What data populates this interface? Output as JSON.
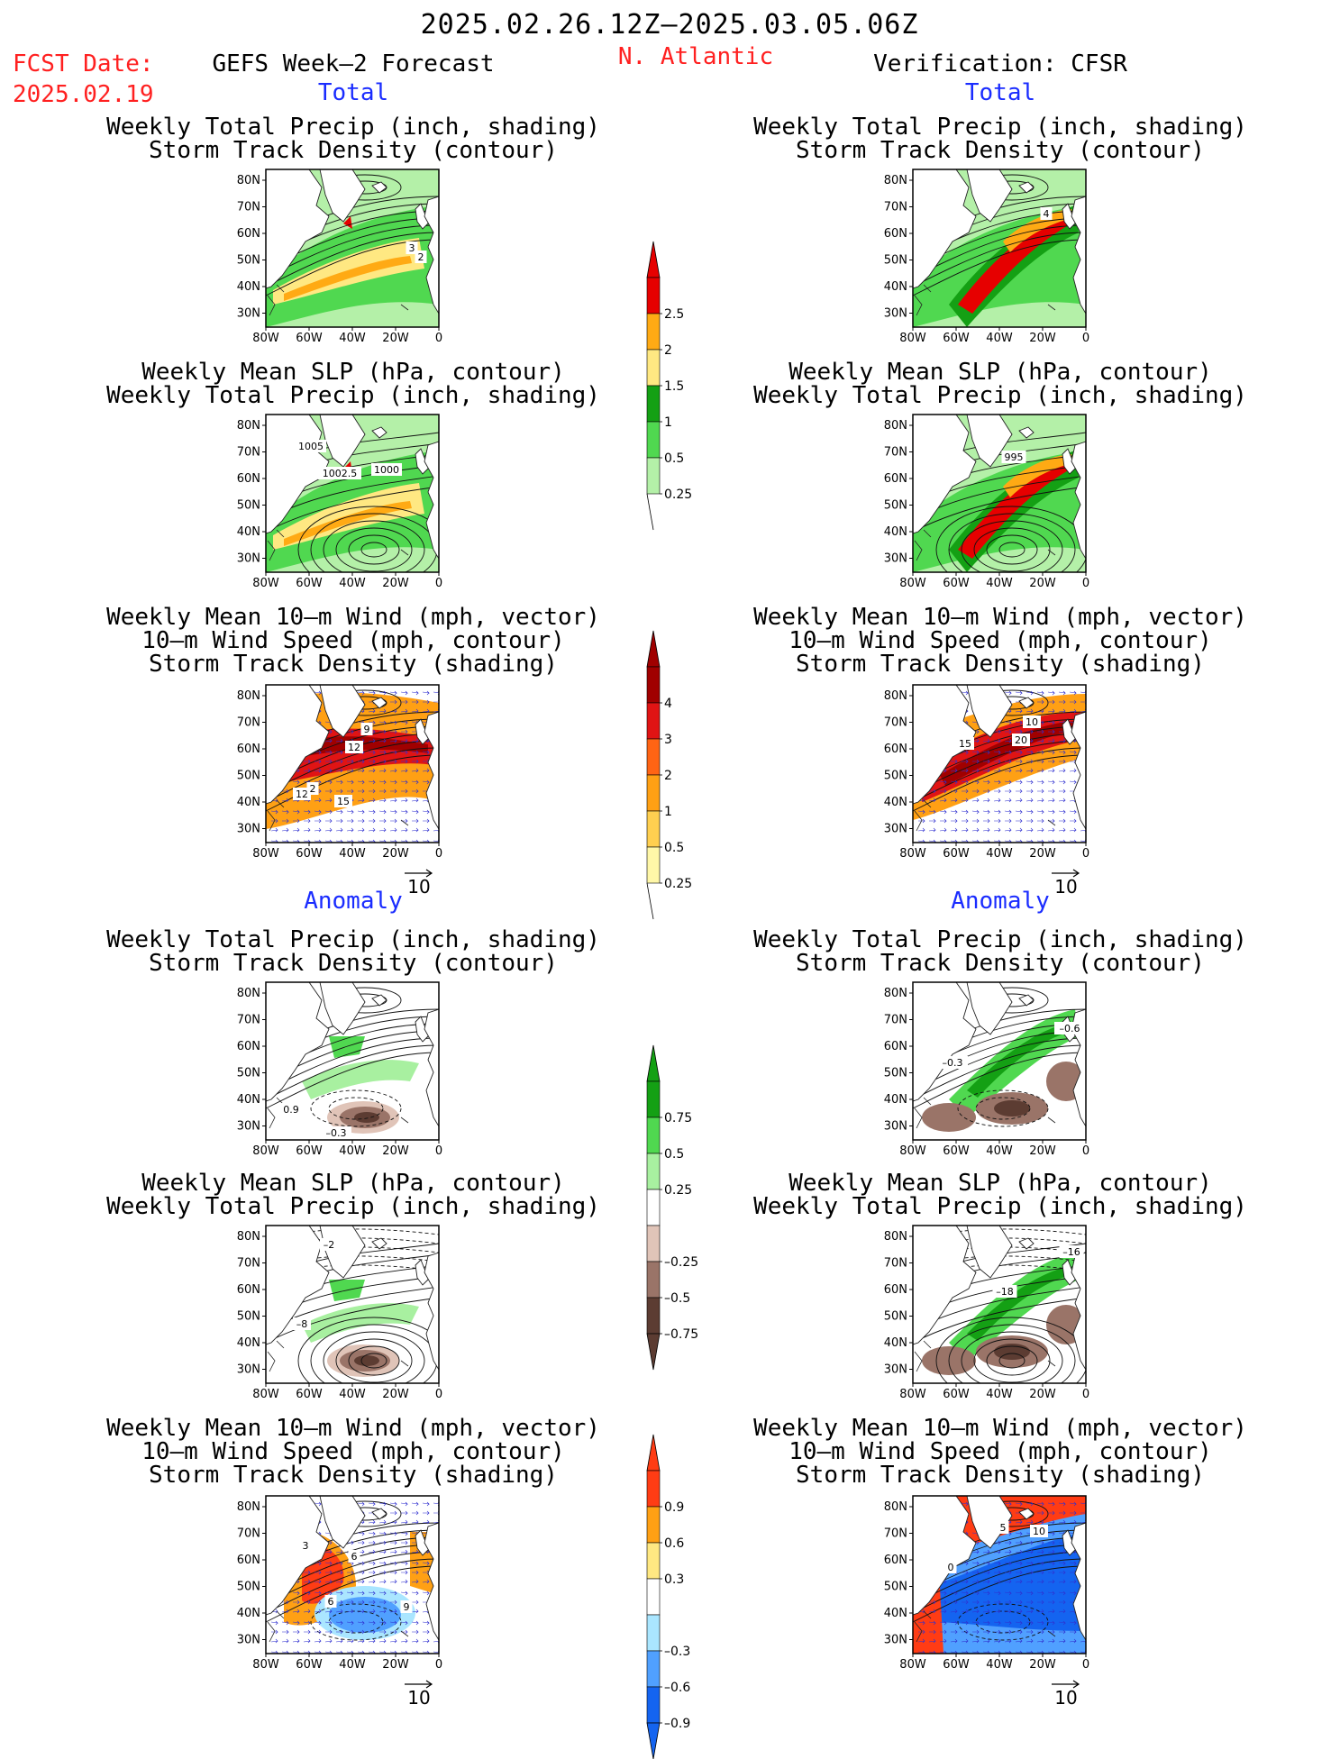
{
  "header": {
    "period": "2025.02.26.12Z–2025.03.05.06Z",
    "fcst_label": "FCST Date:",
    "fcst_date": "2025.02.19",
    "left_title": "GEFS Week–2 Forecast",
    "region": "N. Atlantic",
    "right_title": "Verification: CFSR"
  },
  "sections": {
    "total": "Total",
    "anomaly": "Anomaly"
  },
  "axes": {
    "lat_ticks": [
      "80N",
      "70N",
      "60N",
      "50N",
      "40N",
      "30N"
    ],
    "lon_ticks": [
      "80W",
      "60W",
      "40W",
      "20W",
      "0"
    ]
  },
  "vector_ref": "10",
  "colors": {
    "precip_total": [
      "#b4f0a8",
      "#50d850",
      "#14a014",
      "#ffe882",
      "#ffaa14",
      "#e60000"
    ],
    "density_total": [
      "#fff7a8",
      "#ffcf50",
      "#ffa014",
      "#ff6414",
      "#e01414",
      "#a00000"
    ],
    "precip_anom_neg": [
      "#5c3c32",
      "#9a7468",
      "#e0c4b8"
    ],
    "precip_anom_pos": [
      "#a8f0a0",
      "#50d850",
      "#14a014"
    ],
    "density_anom": [
      "#1464f0",
      "#50a0ff",
      "#aae6ff",
      "#ffe882",
      "#ffa014",
      "#ff3c14"
    ]
  },
  "colorbars": [
    {
      "id": "cb-precip-total",
      "labels": [
        "2.5",
        "2",
        "1.5",
        "1",
        "0.5",
        "0.25"
      ]
    },
    {
      "id": "cb-density-total",
      "labels": [
        "4",
        "3",
        "2",
        "1",
        "0.5",
        "0.25"
      ]
    },
    {
      "id": "cb-precip-anom",
      "labels": [
        "0.75",
        "0.5",
        "0.25",
        "–0.25",
        "–0.5",
        "–0.75"
      ]
    },
    {
      "id": "cb-density-anom",
      "labels": [
        "0.9",
        "0.6",
        "0.3",
        "–0.3",
        "–0.6",
        "–0.9"
      ]
    }
  ],
  "panels": [
    {
      "title": [
        "Weekly Total Precip (inch, shading)",
        "Storm Track Density (contour)"
      ],
      "labels": [
        "3",
        "2"
      ]
    },
    {
      "title": [
        "Weekly Total Precip (inch, shading)",
        "Storm Track Density (contour)"
      ],
      "labels": [
        "4"
      ]
    },
    {
      "title": [
        "Weekly Mean SLP (hPa, contour)",
        "Weekly Total Precip (inch, shading)"
      ],
      "labels": [
        "1005",
        "1002.5",
        "1000"
      ]
    },
    {
      "title": [
        "Weekly Mean SLP (hPa, contour)",
        "Weekly Total Precip (inch, shading)"
      ],
      "labels": [
        "995"
      ]
    },
    {
      "title": [
        "Weekly Mean 10–m Wind (mph, vector)",
        "10–m Wind Speed (mph, contour)",
        "Storm Track Density (shading)"
      ],
      "labels": [
        "9",
        "12",
        "12",
        "2",
        "15"
      ]
    },
    {
      "title": [
        "Weekly Mean 10–m Wind (mph, vector)",
        "10–m Wind Speed (mph, contour)",
        "Storm Track Density (shading)"
      ],
      "labels": [
        "10",
        "20",
        "15"
      ]
    },
    {
      "title": [
        "Weekly Total Precip (inch, shading)",
        "Storm Track Density (contour)"
      ],
      "labels": [
        "0.9",
        "–0.3"
      ]
    },
    {
      "title": [
        "Weekly Total Precip (inch, shading)",
        "Storm Track Density (contour)"
      ],
      "labels": [
        "–0.6",
        "–0.3"
      ]
    },
    {
      "title": [
        "Weekly Mean SLP (hPa, contour)",
        "Weekly Total Precip (inch, shading)"
      ],
      "labels": [
        "–2",
        "–8"
      ]
    },
    {
      "title": [
        "Weekly Mean SLP (hPa, contour)",
        "Weekly Total Precip (inch, shading)"
      ],
      "labels": [
        "–16",
        "–18"
      ]
    },
    {
      "title": [
        "Weekly Mean 10–m Wind (mph, vector)",
        "10–m Wind Speed (mph, contour)",
        "Storm Track Density (shading)"
      ],
      "labels": [
        "3",
        "6",
        "6",
        "9"
      ]
    },
    {
      "title": [
        "Weekly Mean 10–m Wind (mph, vector)",
        "10–m Wind Speed (mph, contour)",
        "Storm Track Density (shading)"
      ],
      "labels": [
        "10",
        "5",
        "0"
      ]
    }
  ]
}
